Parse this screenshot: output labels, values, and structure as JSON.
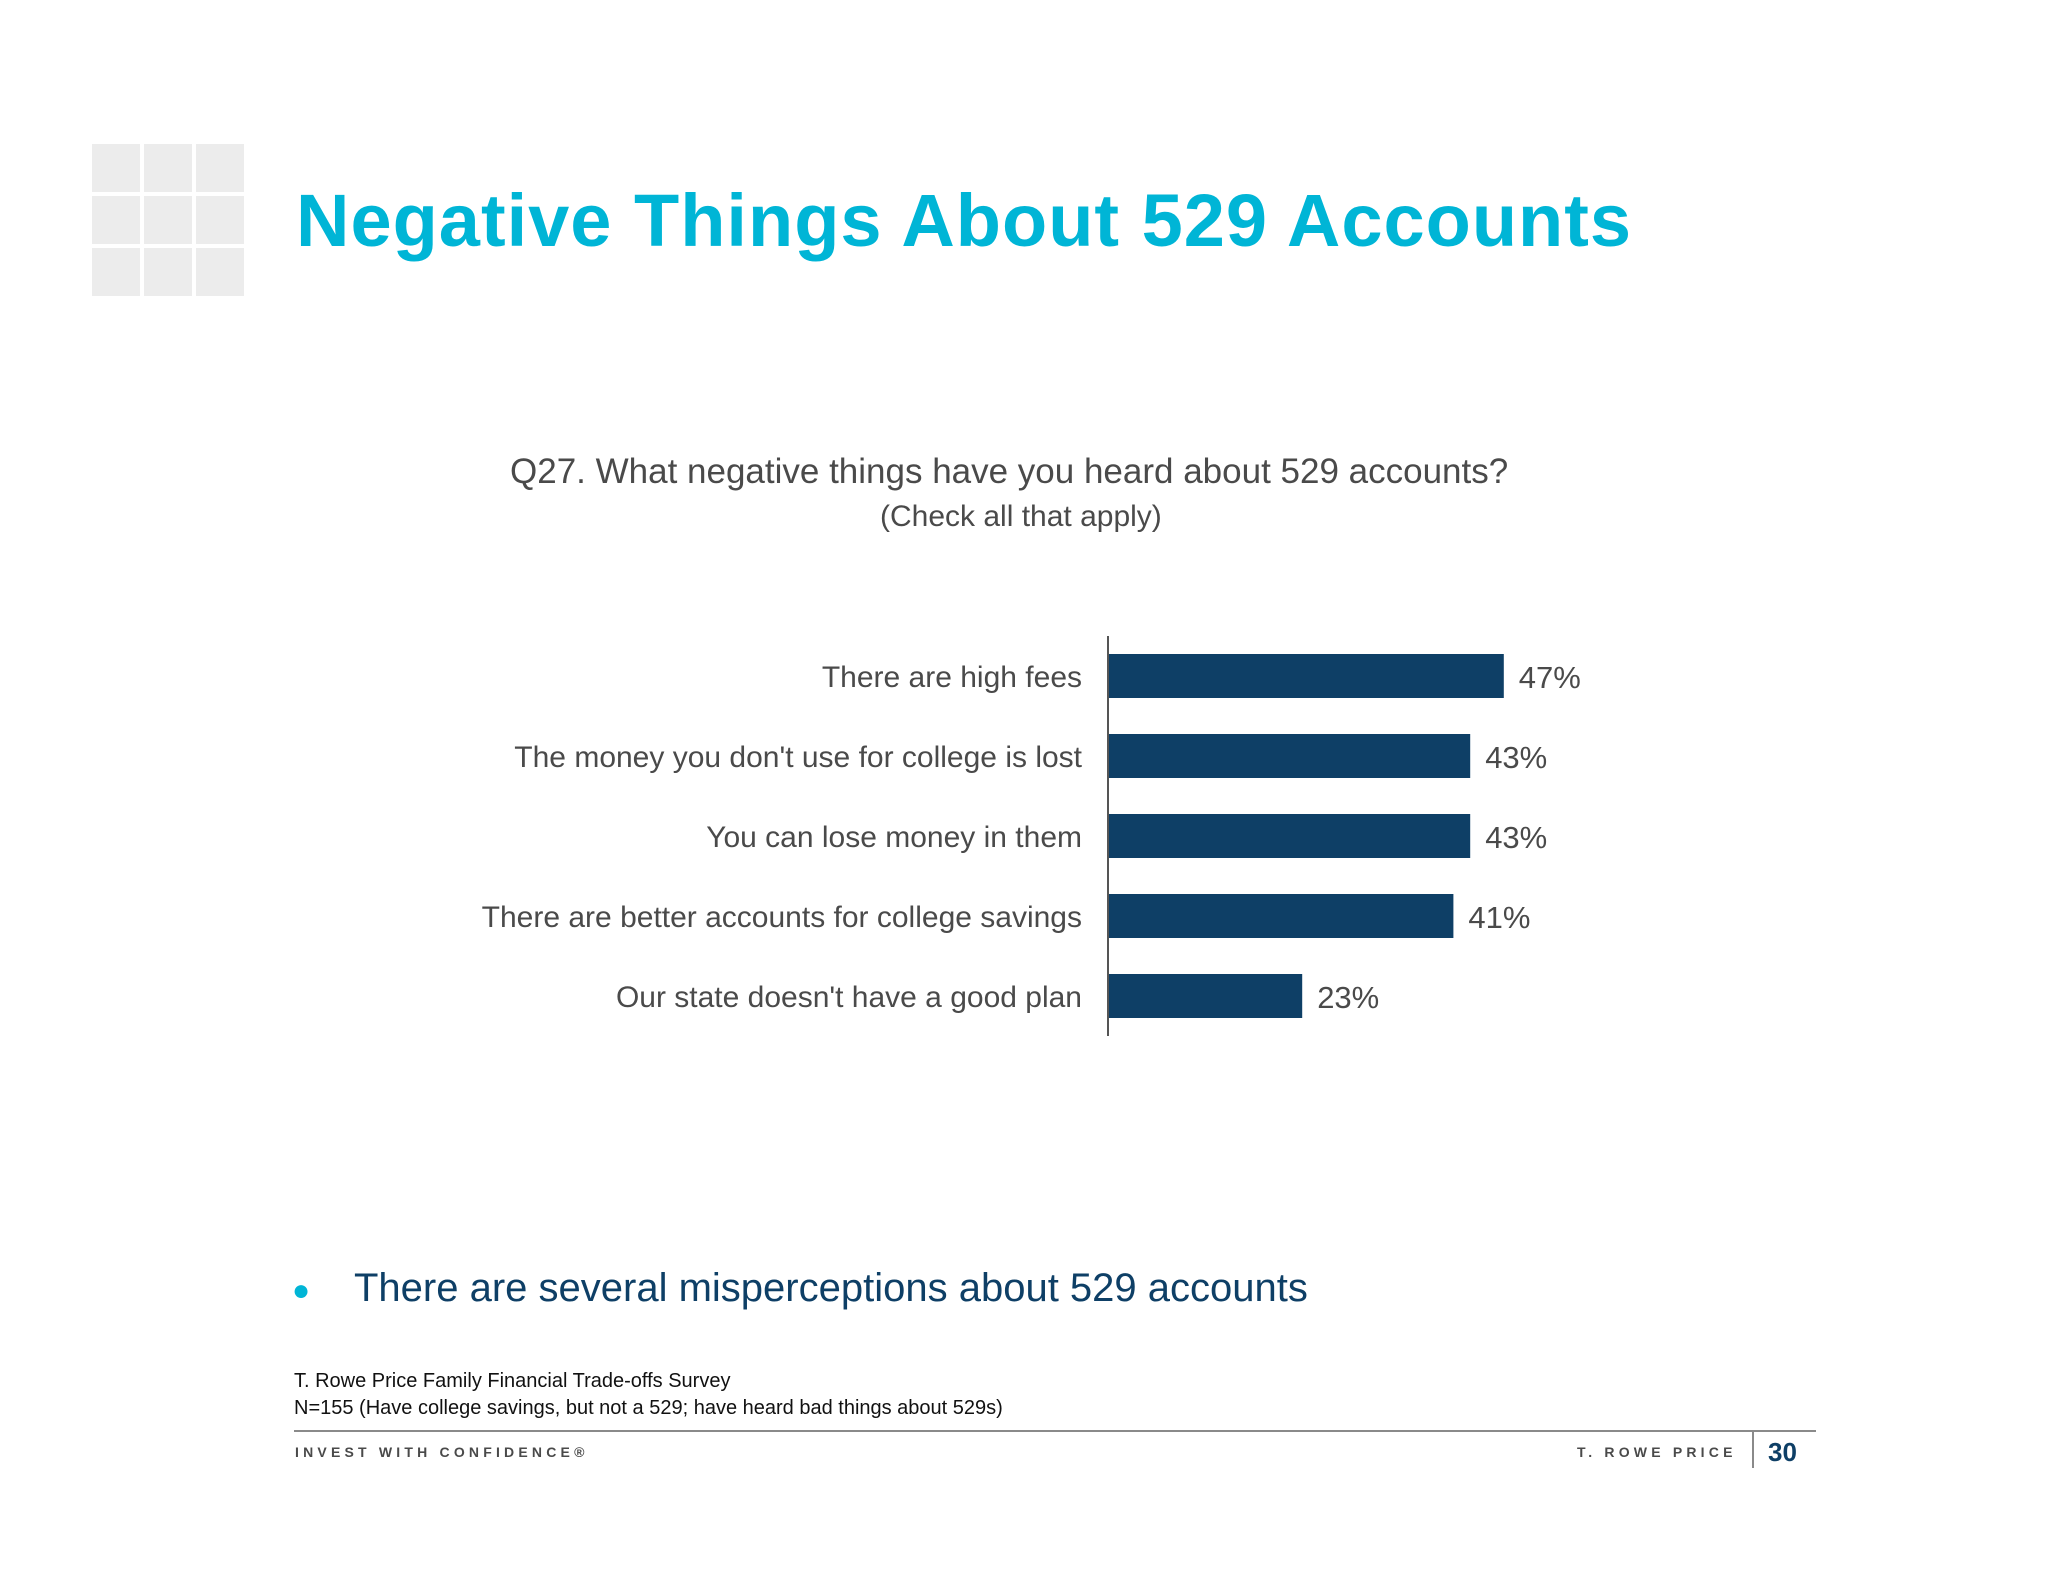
{
  "slide": {
    "title": "Negative Things About 529 Accounts",
    "question": "Q27. What negative things have you heard about 529 accounts?",
    "question_sub": "(Check all that apply)",
    "bullet": "There are several misperceptions about 529 accounts",
    "source_line1": "T. Rowe Price Family Financial Trade-offs Survey",
    "source_line2": "N=155 (Have college savings, but not a 529; have heard bad things about 529s)",
    "footer_left": "INVEST WITH CONFIDENCE®",
    "footer_right": "T. ROWE PRICE",
    "page_number": "30"
  },
  "colors": {
    "title": "#00b5d6",
    "bar": "#0e3f66",
    "bullet_dot": "#00b5d6"
  },
  "chart_data": {
    "type": "bar",
    "orientation": "horizontal",
    "categories": [
      "There are high fees",
      "The money you don't use for college is lost",
      "You can lose money in them",
      "There are better accounts for college savings",
      "Our state doesn't have a good plan"
    ],
    "values": [
      47,
      43,
      43,
      41,
      23
    ],
    "value_labels": [
      "47%",
      "43%",
      "43%",
      "41%",
      "23%"
    ],
    "unit": "%",
    "xlim": [
      0,
      100
    ],
    "grid": false,
    "legend": "none"
  }
}
